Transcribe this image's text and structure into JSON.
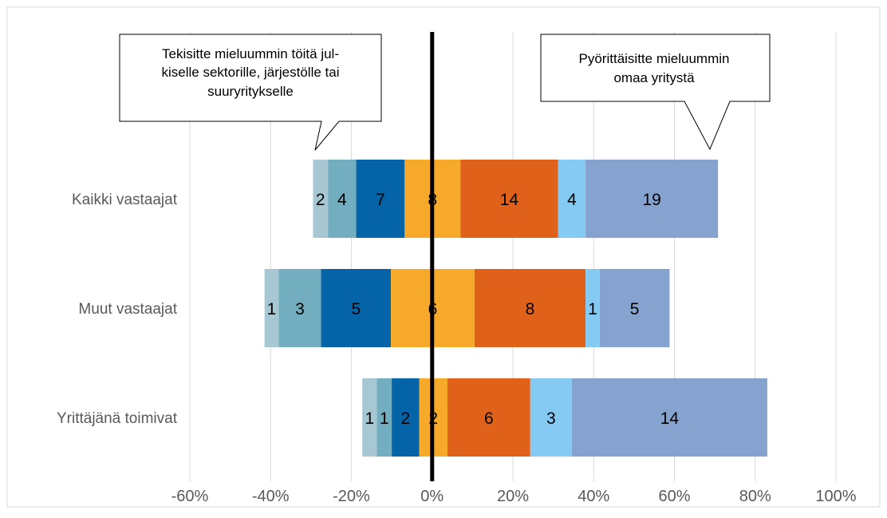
{
  "chart_data": {
    "type": "bar",
    "orientation": "horizontal",
    "stacked": true,
    "diverging": true,
    "categories": [
      "Kaikki vastaajat",
      "Muut vastaajat",
      "Yrittäjänä toimivat"
    ],
    "x_axis": {
      "min": -60,
      "max": 100,
      "step": 20,
      "tick_labels": [
        "-60%",
        "-40%",
        "-20%",
        "0%",
        "20%",
        "40%",
        "60%",
        "80%",
        "100%"
      ],
      "grid": "vertical"
    },
    "segments": [
      {
        "category": "Kaikki vastaajat",
        "bars": [
          {
            "start": -29.5,
            "end": -25.8,
            "label": "2",
            "color": "#a7c8d3"
          },
          {
            "start": -25.8,
            "end": -18.8,
            "label": "4",
            "color": "#73adc0"
          },
          {
            "start": -18.8,
            "end": -6.8,
            "label": "7",
            "color": "#0563a8"
          },
          {
            "start": -6.8,
            "end": 7.0,
            "label": "8",
            "color": "#f6a92a"
          },
          {
            "start": 7.0,
            "end": 31.2,
            "label": "14",
            "color": "#e0611a"
          },
          {
            "start": 31.2,
            "end": 38.0,
            "label": "4",
            "color": "#84caf2"
          },
          {
            "start": 38.0,
            "end": 70.8,
            "label": "19",
            "color": "#86a3cf"
          }
        ]
      },
      {
        "category": "Muut vastaajat",
        "bars": [
          {
            "start": -41.5,
            "end": -38.0,
            "label": "1",
            "color": "#a7c8d3"
          },
          {
            "start": -38.0,
            "end": -27.5,
            "label": "3",
            "color": "#73adc0"
          },
          {
            "start": -27.5,
            "end": -10.2,
            "label": "5",
            "color": "#0563a8"
          },
          {
            "start": -10.2,
            "end": 10.5,
            "label": "6",
            "color": "#f6a92a"
          },
          {
            "start": 10.5,
            "end": 38.0,
            "label": "8",
            "color": "#e0611a"
          },
          {
            "start": 38.0,
            "end": 41.5,
            "label": "1",
            "color": "#84caf2"
          },
          {
            "start": 41.5,
            "end": 58.8,
            "label": "5",
            "color": "#86a3cf"
          }
        ]
      },
      {
        "category": "Yrittäjänä toimivat",
        "bars": [
          {
            "start": -17.3,
            "end": -13.7,
            "label": "1",
            "color": "#a7c8d3"
          },
          {
            "start": -13.7,
            "end": -10.0,
            "label": "1",
            "color": "#73adc0"
          },
          {
            "start": -10.0,
            "end": -3.2,
            "label": "2",
            "color": "#0563a8"
          },
          {
            "start": -3.2,
            "end": 3.8,
            "label": "2",
            "color": "#f6a92a"
          },
          {
            "start": 3.8,
            "end": 24.3,
            "label": "6",
            "color": "#e0611a"
          },
          {
            "start": 24.3,
            "end": 34.6,
            "label": "3",
            "color": "#84caf2"
          },
          {
            "start": 34.6,
            "end": 83.0,
            "label": "14",
            "color": "#86a3cf"
          }
        ]
      }
    ],
    "callouts": {
      "left": {
        "lines": [
          "Tekisitte mieluummin töitä jul-",
          "kiselle sektorille, järjestölle tai",
          "suuryritykselle"
        ]
      },
      "right": {
        "lines": [
          "Pyörittäisitte mieluummin",
          "omaa yritystä"
        ]
      }
    }
  }
}
